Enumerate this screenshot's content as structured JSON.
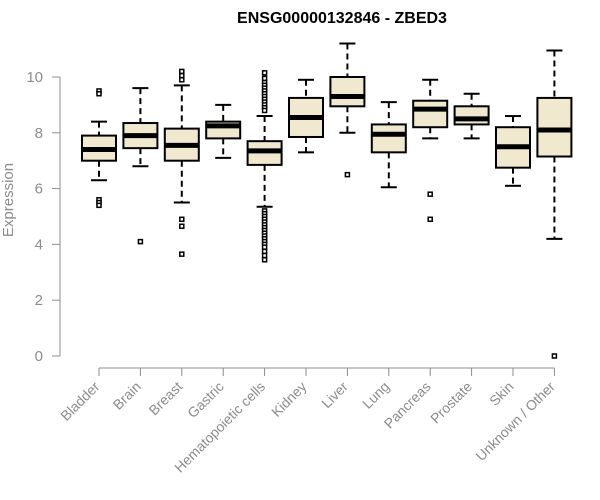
{
  "chart_data": {
    "type": "boxplot",
    "title": "ENSG00000132846 - ZBED3",
    "ylabel": "Expression",
    "xlabel": "",
    "ylim": [
      0,
      11.3
    ],
    "yticks": [
      0,
      2,
      4,
      6,
      8,
      10
    ],
    "grid": false,
    "colors": {
      "box_fill": "#f0e9d0",
      "stroke": "#000000",
      "axis": "#8c8c8c"
    },
    "categories": [
      "Bladder",
      "Brain",
      "Breast",
      "Gastric",
      "Hematopoietic cells",
      "Kidney",
      "Liver",
      "Lung",
      "Pancreas",
      "Prostate",
      "Skin",
      "Unknown / Other"
    ],
    "boxes": [
      {
        "category": "Bladder",
        "whisker_low": 6.3,
        "q1": 7.0,
        "median": 7.4,
        "q3": 7.9,
        "whisker_high": 8.4,
        "outliers": [
          9.5,
          9.4,
          5.6,
          5.5,
          5.4
        ]
      },
      {
        "category": "Brain",
        "whisker_low": 6.8,
        "q1": 7.45,
        "median": 7.9,
        "q3": 8.35,
        "whisker_high": 9.6,
        "outliers": [
          4.1
        ]
      },
      {
        "category": "Breast",
        "whisker_low": 5.5,
        "q1": 7.0,
        "median": 7.55,
        "q3": 8.15,
        "whisker_high": 9.7,
        "outliers": [
          10.2,
          10.05,
          9.9,
          4.9,
          4.65,
          3.65
        ]
      },
      {
        "category": "Gastric",
        "whisker_low": 7.1,
        "q1": 7.8,
        "median": 8.25,
        "q3": 8.4,
        "whisker_high": 9.0,
        "outliers": []
      },
      {
        "category": "Hematopoietic cells",
        "whisker_low": 5.35,
        "q1": 6.85,
        "median": 7.35,
        "q3": 7.7,
        "whisker_high": 8.6,
        "outliers": [
          10.15,
          9.95,
          9.8,
          9.7,
          9.6,
          9.5,
          9.4,
          9.3,
          9.2,
          9.1,
          9.0,
          8.9,
          8.8,
          5.2,
          5.1,
          5.0,
          4.9,
          4.8,
          4.7,
          4.6,
          4.5,
          4.4,
          4.3,
          4.2,
          4.1,
          4.0,
          3.9,
          3.75,
          3.6,
          3.45
        ]
      },
      {
        "category": "Kidney",
        "whisker_low": 7.3,
        "q1": 7.85,
        "median": 8.55,
        "q3": 9.25,
        "whisker_high": 9.9,
        "outliers": []
      },
      {
        "category": "Liver",
        "whisker_low": 8.0,
        "q1": 8.95,
        "median": 9.3,
        "q3": 10.0,
        "whisker_high": 11.2,
        "outliers": [
          6.5
        ]
      },
      {
        "category": "Lung",
        "whisker_low": 6.05,
        "q1": 7.3,
        "median": 7.95,
        "q3": 8.3,
        "whisker_high": 9.1,
        "outliers": []
      },
      {
        "category": "Pancreas",
        "whisker_low": 7.8,
        "q1": 8.2,
        "median": 8.85,
        "q3": 9.15,
        "whisker_high": 9.9,
        "outliers": [
          5.8,
          4.9
        ]
      },
      {
        "category": "Prostate",
        "whisker_low": 7.8,
        "q1": 8.3,
        "median": 8.5,
        "q3": 8.95,
        "whisker_high": 9.4,
        "outliers": []
      },
      {
        "category": "Skin",
        "whisker_low": 6.1,
        "q1": 6.75,
        "median": 7.5,
        "q3": 8.2,
        "whisker_high": 8.6,
        "outliers": []
      },
      {
        "category": "Unknown / Other",
        "whisker_low": 4.2,
        "q1": 7.15,
        "median": 8.1,
        "q3": 9.25,
        "whisker_high": 10.95,
        "outliers": [
          0.0
        ]
      }
    ]
  }
}
